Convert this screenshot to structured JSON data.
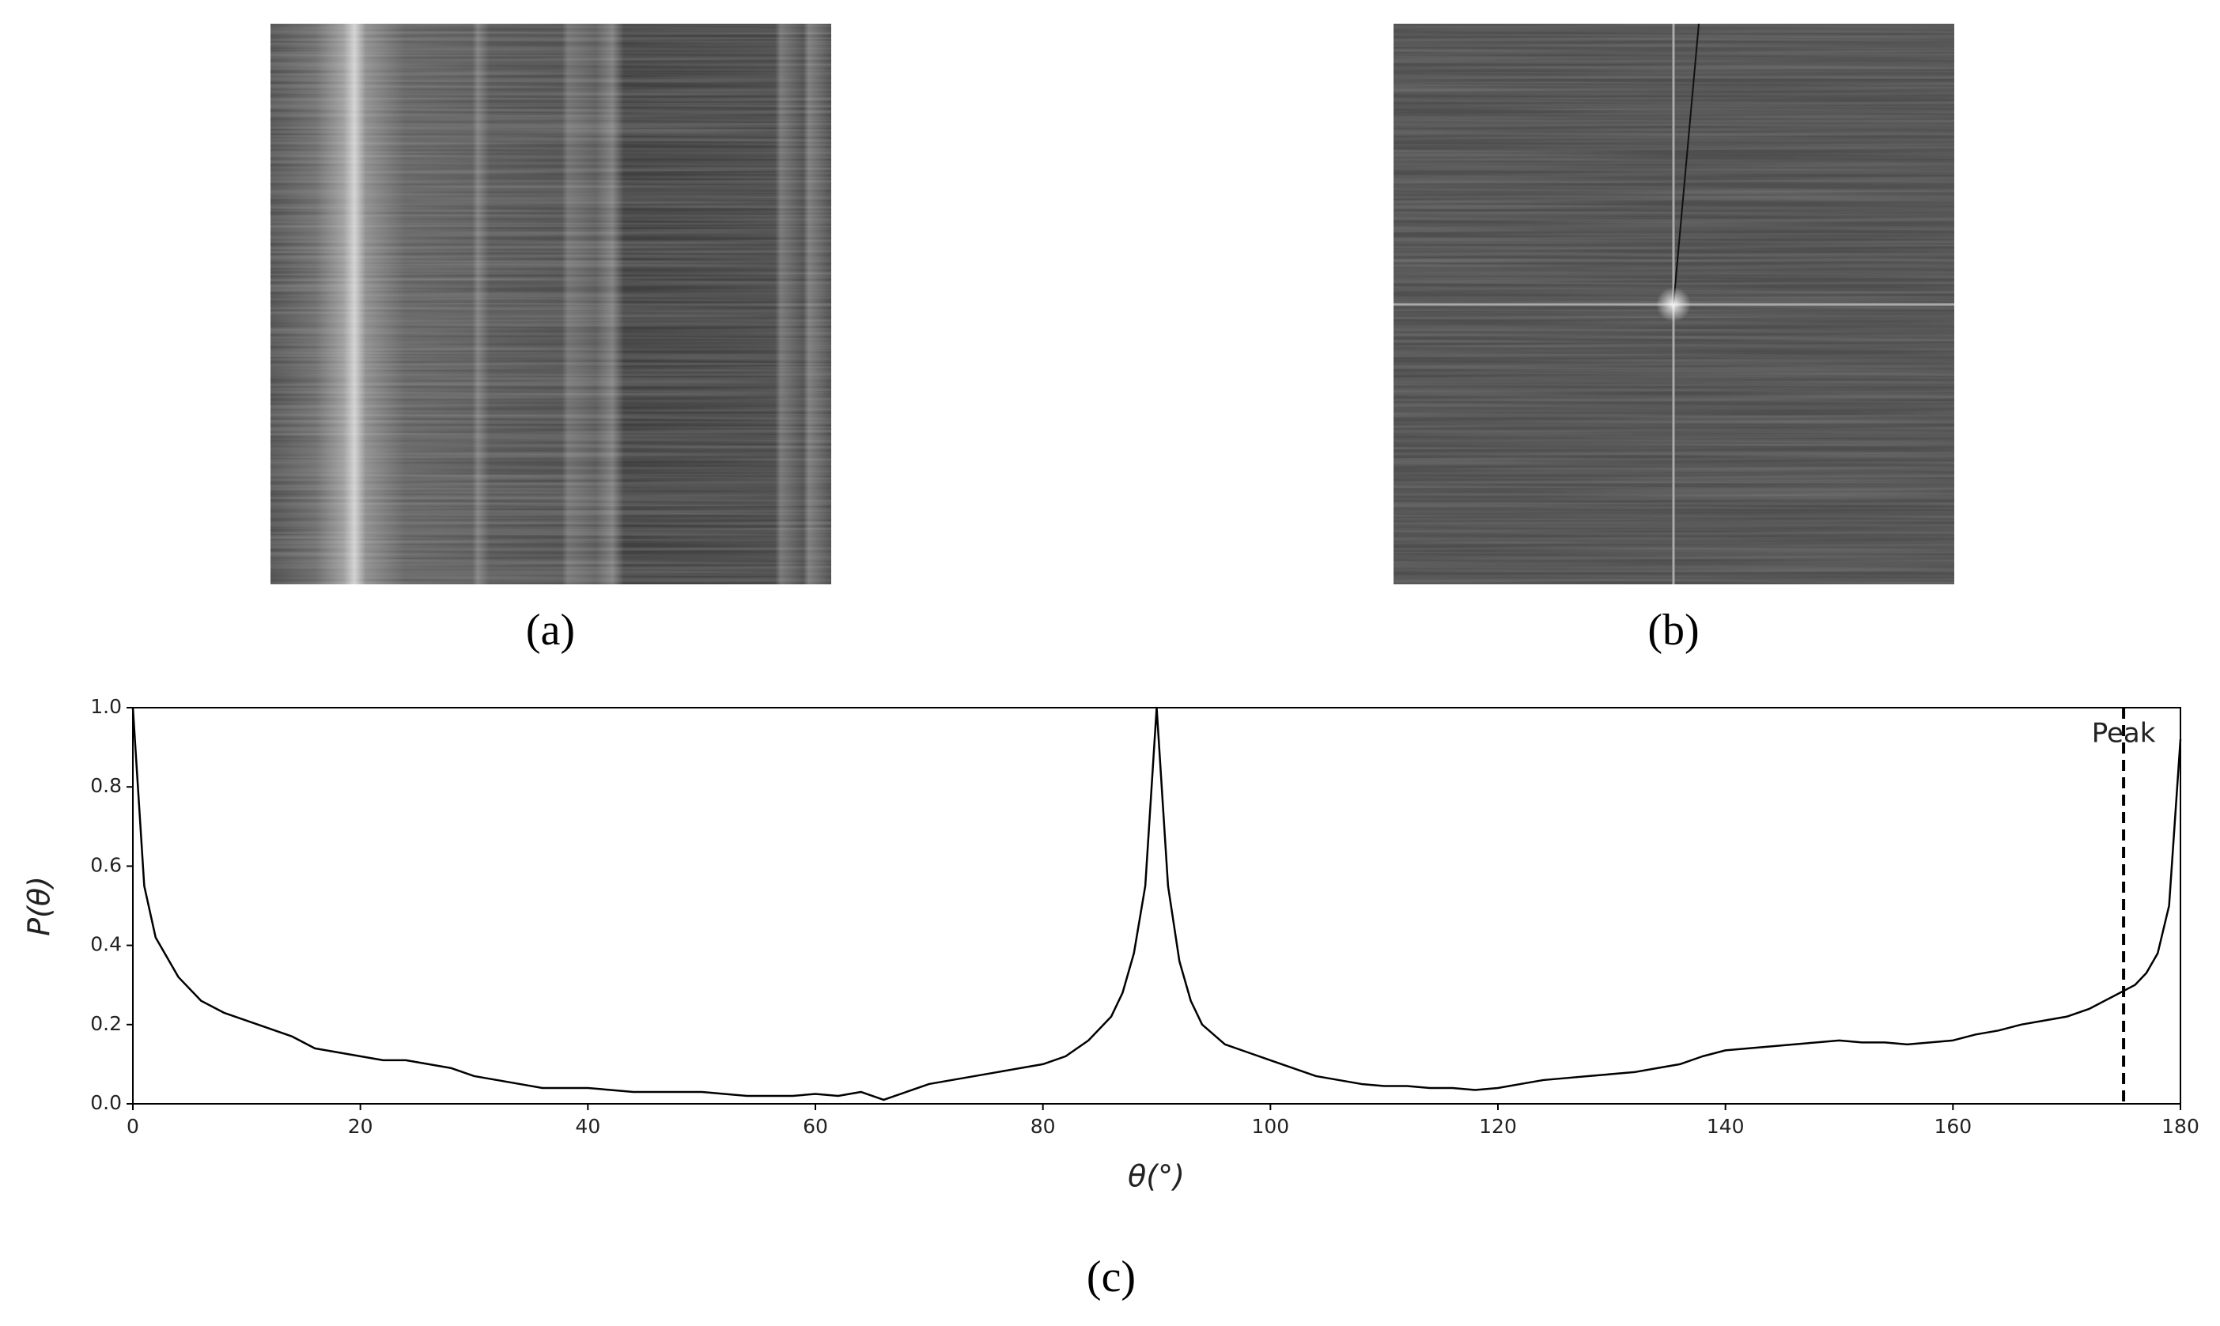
{
  "panels": [
    {
      "label": "(a)"
    },
    {
      "label": "(b)"
    }
  ],
  "chart_data": {
    "type": "line",
    "label": "(c)",
    "xlabel": "θ(°)",
    "ylabel": "P(θ)",
    "xlim": [
      0,
      180
    ],
    "ylim": [
      0,
      1
    ],
    "xticks": [
      0,
      20,
      40,
      60,
      80,
      100,
      120,
      140,
      160,
      180
    ],
    "yticks": [
      {
        "value": 0,
        "label": "0.0"
      },
      {
        "value": 0.2,
        "label": "0.2"
      },
      {
        "value": 0.4,
        "label": "0.4"
      },
      {
        "value": 0.6,
        "label": "0.6"
      },
      {
        "value": 0.8,
        "label": "0.8"
      },
      {
        "value": 1,
        "label": "1.0"
      }
    ],
    "color": "#000000",
    "x": [
      0,
      1,
      2,
      4,
      6,
      8,
      10,
      12,
      14,
      16,
      18,
      20,
      22,
      24,
      26,
      28,
      30,
      32,
      34,
      36,
      38,
      40,
      42,
      44,
      46,
      48,
      50,
      52,
      54,
      56,
      58,
      60,
      62,
      64,
      66,
      68,
      70,
      72,
      74,
      76,
      78,
      80,
      82,
      84,
      86,
      87,
      88,
      89,
      90,
      91,
      92,
      93,
      94,
      96,
      98,
      100,
      102,
      104,
      106,
      108,
      110,
      112,
      114,
      116,
      118,
      120,
      122,
      124,
      126,
      128,
      130,
      132,
      134,
      136,
      138,
      140,
      142,
      144,
      146,
      148,
      150,
      152,
      154,
      156,
      158,
      160,
      162,
      164,
      166,
      168,
      170,
      172,
      174,
      176,
      177,
      178,
      179,
      180
    ],
    "values": [
      1.0,
      0.55,
      0.42,
      0.32,
      0.26,
      0.23,
      0.21,
      0.19,
      0.17,
      0.14,
      0.13,
      0.12,
      0.11,
      0.11,
      0.1,
      0.09,
      0.07,
      0.06,
      0.05,
      0.04,
      0.04,
      0.04,
      0.035,
      0.03,
      0.03,
      0.03,
      0.03,
      0.025,
      0.02,
      0.02,
      0.02,
      0.025,
      0.02,
      0.03,
      0.01,
      0.03,
      0.05,
      0.06,
      0.07,
      0.08,
      0.09,
      0.1,
      0.12,
      0.16,
      0.22,
      0.28,
      0.38,
      0.55,
      1.0,
      0.55,
      0.36,
      0.26,
      0.2,
      0.15,
      0.13,
      0.11,
      0.09,
      0.07,
      0.06,
      0.05,
      0.045,
      0.045,
      0.04,
      0.04,
      0.035,
      0.04,
      0.05,
      0.06,
      0.065,
      0.07,
      0.075,
      0.08,
      0.09,
      0.1,
      0.12,
      0.135,
      0.14,
      0.145,
      0.15,
      0.155,
      0.16,
      0.155,
      0.155,
      0.15,
      0.155,
      0.16,
      0.175,
      0.185,
      0.2,
      0.21,
      0.22,
      0.24,
      0.27,
      0.3,
      0.33,
      0.38,
      0.5,
      0.92
    ],
    "annotations": [
      {
        "text": "Peak",
        "x": 175
      }
    ]
  }
}
